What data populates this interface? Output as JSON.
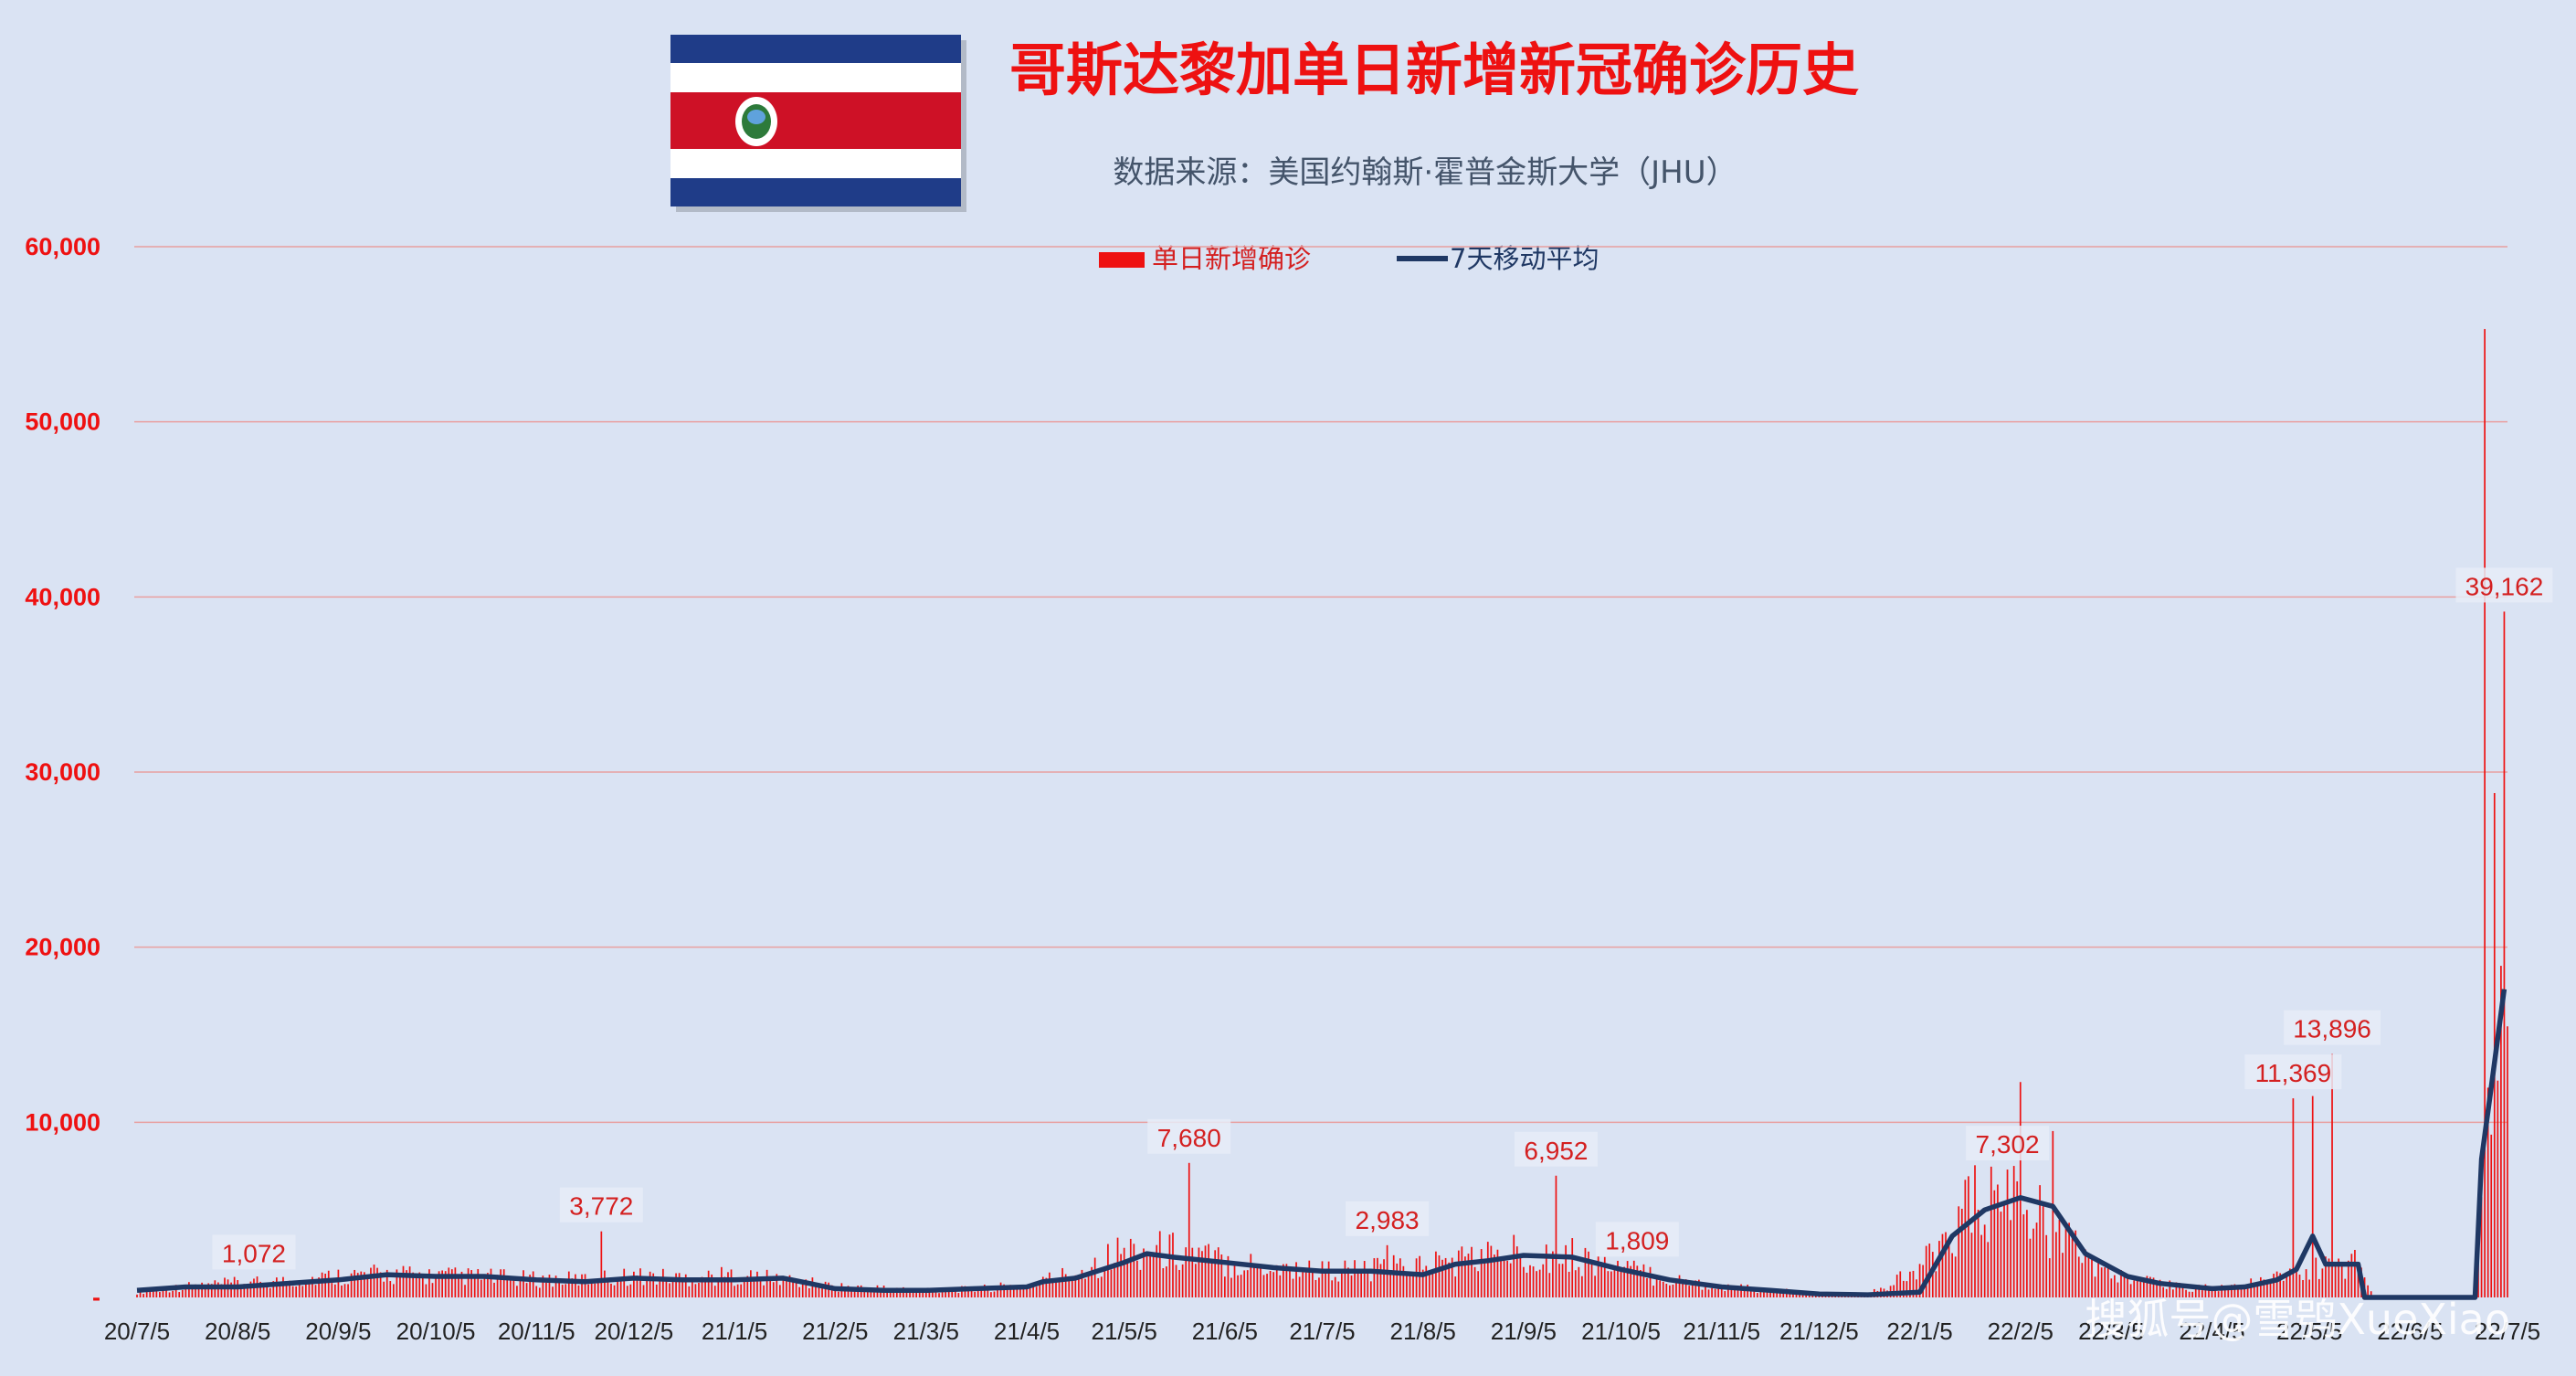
{
  "title": "哥斯达黎加单日新增新冠确诊历史",
  "subtitle": "数据来源：美国约翰斯·霍普金斯大学（JHU）",
  "watermark": "搜狐号@雪鸮XueXiao",
  "colors": {
    "background": "#dae3f3",
    "bars": "#ee1111",
    "avg_line": "#1f3864",
    "gridline": "#e8a0a0",
    "title": "#ee1111",
    "flag_blue": "#1f3c88",
    "flag_red": "#ce1126"
  },
  "chart_data": {
    "type": "bar",
    "ylim": [
      0,
      60000
    ],
    "y_ticks": [
      0,
      10000,
      20000,
      30000,
      40000,
      50000,
      60000
    ],
    "y_tick_labels": [
      "-",
      "10,000",
      "20,000",
      "30,000",
      "40,000",
      "50,000",
      "60,000"
    ],
    "x_tick_labels": [
      "20/7/5",
      "20/8/5",
      "20/9/5",
      "20/10/5",
      "20/11/5",
      "20/12/5",
      "21/1/5",
      "21/2/5",
      "21/3/5",
      "21/4/5",
      "21/5/5",
      "21/6/5",
      "21/7/5",
      "21/8/5",
      "21/9/5",
      "21/10/5",
      "21/11/5",
      "21/12/5",
      "22/1/5",
      "22/2/5",
      "22/3/5",
      "22/4/5",
      "22/5/5",
      "22/6/5",
      "22/7/5"
    ],
    "legend": {
      "position": "top-center"
    },
    "series": [
      {
        "name": "单日新增确诊",
        "type": "bar",
        "anchors": [
          [
            "20/7/5",
            300
          ],
          [
            "20/7/20",
            600
          ],
          [
            "20/8/5",
            800
          ],
          [
            "20/8/20",
            900
          ],
          [
            "20/9/5",
            1200
          ],
          [
            "20/9/20",
            1300
          ],
          [
            "20/10/5",
            1200
          ],
          [
            "20/10/20",
            1150
          ],
          [
            "20/11/5",
            1000
          ],
          [
            "20/11/20",
            1000
          ],
          [
            "20/12/5",
            1200
          ],
          [
            "20/12/20",
            1100
          ],
          [
            "21/1/5",
            1200
          ],
          [
            "21/1/20",
            1000
          ],
          [
            "21/2/5",
            600
          ],
          [
            "21/2/20",
            500
          ],
          [
            "21/3/5",
            400
          ],
          [
            "21/3/20",
            450
          ],
          [
            "21/4/5",
            700
          ],
          [
            "21/4/20",
            1400
          ],
          [
            "21/5/5",
            2600
          ],
          [
            "21/5/20",
            2600
          ],
          [
            "21/6/5",
            2000
          ],
          [
            "21/6/20",
            1700
          ],
          [
            "21/7/5",
            1500
          ],
          [
            "21/7/20",
            1500
          ],
          [
            "21/8/5",
            1800
          ],
          [
            "21/8/20",
            2200
          ],
          [
            "21/9/5",
            2500
          ],
          [
            "21/9/20",
            2300
          ],
          [
            "21/10/5",
            1600
          ],
          [
            "21/10/20",
            1000
          ],
          [
            "21/11/5",
            600
          ],
          [
            "21/11/20",
            400
          ],
          [
            "21/12/5",
            200
          ],
          [
            "21/12/20",
            150
          ],
          [
            "22/1/5",
            1500
          ],
          [
            "22/1/20",
            5000
          ],
          [
            "22/2/5",
            5500
          ],
          [
            "22/2/20",
            3000
          ],
          [
            "22/3/5",
            1200
          ],
          [
            "22/3/20",
            700
          ],
          [
            "22/4/5",
            500
          ],
          [
            "22/4/20",
            800
          ],
          [
            "22/5/5",
            1500
          ],
          [
            "22/5/20",
            2000
          ],
          [
            "22/5/25",
            0
          ],
          [
            "22/6/25",
            0
          ],
          [
            "22/6/28",
            7800
          ],
          [
            "22/7/1",
            12000
          ],
          [
            "22/7/5",
            17500
          ]
        ],
        "spikes": [
          [
            "20/8/10",
            1072
          ],
          [
            "20/11/25",
            3772
          ],
          [
            "21/5/25",
            7680
          ],
          [
            "21/7/25",
            2983
          ],
          [
            "21/9/15",
            6952
          ],
          [
            "21/10/10",
            1809
          ],
          [
            "22/2/1",
            7302
          ],
          [
            "22/2/5",
            12300
          ],
          [
            "22/2/15",
            9500
          ],
          [
            "22/4/30",
            11369
          ],
          [
            "22/5/6",
            11500
          ],
          [
            "22/5/12",
            13896
          ],
          [
            "22/6/28",
            55300
          ],
          [
            "22/7/1",
            28800
          ],
          [
            "22/7/4",
            39162
          ]
        ]
      },
      {
        "name": "7天移动平均",
        "type": "line",
        "values": [
          [
            "20/7/5",
            400
          ],
          [
            "20/7/20",
            600
          ],
          [
            "20/8/5",
            600
          ],
          [
            "20/8/20",
            800
          ],
          [
            "20/9/5",
            1000
          ],
          [
            "20/9/20",
            1300
          ],
          [
            "20/10/5",
            1200
          ],
          [
            "20/10/20",
            1200
          ],
          [
            "20/11/5",
            1000
          ],
          [
            "20/11/20",
            900
          ],
          [
            "20/12/5",
            1100
          ],
          [
            "20/12/20",
            1000
          ],
          [
            "21/1/5",
            1000
          ],
          [
            "21/1/20",
            1100
          ],
          [
            "21/2/5",
            500
          ],
          [
            "21/2/20",
            400
          ],
          [
            "21/3/5",
            400
          ],
          [
            "21/3/20",
            500
          ],
          [
            "21/4/5",
            600
          ],
          [
            "21/4/10",
            900
          ],
          [
            "21/4/20",
            1100
          ],
          [
            "21/5/5",
            2000
          ],
          [
            "21/5/12",
            2500
          ],
          [
            "21/5/20",
            2300
          ],
          [
            "21/6/5",
            2000
          ],
          [
            "21/6/20",
            1700
          ],
          [
            "21/7/5",
            1500
          ],
          [
            "21/7/20",
            1500
          ],
          [
            "21/8/5",
            1300
          ],
          [
            "21/8/15",
            1900
          ],
          [
            "21/8/25",
            2100
          ],
          [
            "21/9/5",
            2400
          ],
          [
            "21/9/20",
            2300
          ],
          [
            "21/10/5",
            1600
          ],
          [
            "21/10/20",
            1000
          ],
          [
            "21/11/5",
            600
          ],
          [
            "21/11/20",
            400
          ],
          [
            "21/12/5",
            200
          ],
          [
            "21/12/20",
            150
          ],
          [
            "22/1/5",
            300
          ],
          [
            "22/1/15",
            3500
          ],
          [
            "22/1/25",
            5000
          ],
          [
            "22/2/5",
            5700
          ],
          [
            "22/2/15",
            5200
          ],
          [
            "22/2/25",
            2500
          ],
          [
            "22/3/10",
            1200
          ],
          [
            "22/3/20",
            800
          ],
          [
            "22/4/5",
            500
          ],
          [
            "22/4/15",
            600
          ],
          [
            "22/4/25",
            1000
          ],
          [
            "22/5/1",
            1600
          ],
          [
            "22/5/6",
            3500
          ],
          [
            "22/5/10",
            1900
          ],
          [
            "22/5/20",
            1900
          ],
          [
            "22/5/22",
            0
          ],
          [
            "22/6/25",
            0
          ],
          [
            "22/6/27",
            7900
          ],
          [
            "22/6/30",
            12000
          ],
          [
            "22/7/4",
            17600
          ]
        ]
      }
    ],
    "annotations": [
      {
        "x": "20/8/10",
        "label": "1,072"
      },
      {
        "x": "20/11/25",
        "label": "3,772"
      },
      {
        "x": "21/5/25",
        "label": "7,680"
      },
      {
        "x": "21/7/25",
        "label": "2,983"
      },
      {
        "x": "21/9/15",
        "label": "6,952"
      },
      {
        "x": "21/10/10",
        "label": "1,809"
      },
      {
        "x": "22/2/1",
        "label": "7,302"
      },
      {
        "x": "22/4/30",
        "label": "11,369"
      },
      {
        "x": "22/5/12",
        "label": "13,896"
      },
      {
        "x": "22/7/4",
        "label": "39,162"
      }
    ]
  }
}
